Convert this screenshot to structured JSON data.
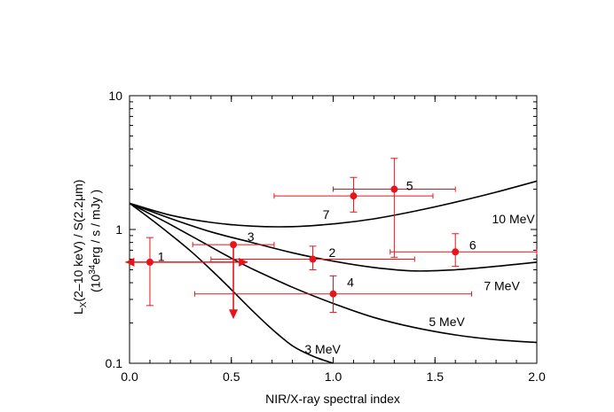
{
  "chart_data": {
    "type": "scatter",
    "xlabel": "NIR/X-ray spectral index",
    "ylabel_line1_pre": "L",
    "ylabel_line1_sub": "X",
    "ylabel_line1_post": "(2–10 keV) / S(2.2μm)",
    "ylabel_line2_pre": "(10",
    "ylabel_line2_sup": "34",
    "ylabel_line2_post": "erg / s / mJy )",
    "xlim": [
      0.0,
      2.0
    ],
    "ylim": [
      0.1,
      10
    ],
    "yscale": "log",
    "x_ticks": [
      {
        "v": 0.0,
        "label": "0.0"
      },
      {
        "v": 0.5,
        "label": "0.5"
      },
      {
        "v": 1.0,
        "label": "1.0"
      },
      {
        "v": 1.5,
        "label": "1.5"
      },
      {
        "v": 2.0,
        "label": "2.0"
      }
    ],
    "y_ticks": [
      {
        "v": 0.1,
        "label": "0.1"
      },
      {
        "v": 1,
        "label": "1"
      },
      {
        "v": 10,
        "label": "10"
      }
    ],
    "points_color": "#e8141b",
    "points": [
      {
        "id": "1",
        "x": 0.1,
        "y": 0.57,
        "y_lo": 0.27,
        "y_hi": 0.87,
        "x_lo": -0.02,
        "x_hi": 0.58,
        "x_limits_arrows": true,
        "label_dx": 0.06,
        "label_dy": 1.1
      },
      {
        "id": "2",
        "x": 0.9,
        "y": 0.6,
        "y_lo": 0.5,
        "y_hi": 0.75,
        "x_lo": 0.4,
        "x_hi": 1.4,
        "label_dx": 0.1,
        "label_dy": 1.12
      },
      {
        "id": "3",
        "x": 0.51,
        "y": 0.77,
        "y_upper_limit_to": 0.22,
        "x_lo": 0.31,
        "x_hi": 0.71,
        "label_dx": 0.09,
        "label_dy": 1.15
      },
      {
        "id": "4",
        "x": 1.0,
        "y": 0.33,
        "y_lo": 0.24,
        "y_hi": 0.45,
        "x_lo": 0.32,
        "x_hi": 1.68,
        "label_dx": 0.09,
        "label_dy": 1.22
      },
      {
        "id": "5",
        "x": 1.3,
        "y": 2.0,
        "y_lo": 0.62,
        "y_hi": 3.4,
        "x_lo": 1.0,
        "x_hi": 1.6,
        "label_dx": 0.08,
        "label_dy": 1.06
      },
      {
        "id": "6",
        "x": 1.6,
        "y": 0.68,
        "y_lo": 0.53,
        "y_hi": 0.93,
        "x_lo": 1.28,
        "x_hi": 2.0,
        "label_dx": 0.09,
        "label_dy": 1.13
      },
      {
        "id": "7",
        "x": 1.1,
        "y": 1.78,
        "y_lo": 1.35,
        "y_hi": 2.45,
        "x_lo": 0.71,
        "x_hi": 1.49,
        "label_dx": -0.13,
        "label_dy": 0.73
      }
    ],
    "series": [
      {
        "name": "3 MeV",
        "label_x": 0.86,
        "label_y": 0.128,
        "x": [
          0,
          0.1,
          0.2,
          0.3,
          0.4,
          0.5,
          0.6,
          0.7,
          0.8,
          0.9,
          1.0
        ],
        "y": [
          1.57,
          1.21,
          0.92,
          0.69,
          0.5,
          0.355,
          0.25,
          0.18,
          0.135,
          0.113,
          0.1
        ]
      },
      {
        "name": "5 MeV",
        "label_x": 1.47,
        "label_y": 0.205,
        "x": [
          0,
          0.1,
          0.2,
          0.3,
          0.4,
          0.5,
          0.6,
          0.8,
          1.0,
          1.2,
          1.4,
          1.6,
          1.8,
          2.0
        ],
        "y": [
          1.57,
          1.31,
          1.09,
          0.9,
          0.74,
          0.61,
          0.51,
          0.37,
          0.28,
          0.22,
          0.185,
          0.163,
          0.15,
          0.143
        ]
      },
      {
        "name": "7 MeV",
        "label_x": 1.74,
        "label_y": 0.38,
        "x": [
          0,
          0.2,
          0.4,
          0.6,
          0.8,
          1.0,
          1.2,
          1.4,
          1.6,
          1.8,
          2.0
        ],
        "y": [
          1.57,
          1.21,
          0.96,
          0.8,
          0.67,
          0.58,
          0.52,
          0.49,
          0.5,
          0.53,
          0.57
        ]
      },
      {
        "name": "10 MeV",
        "label_x": 1.78,
        "label_y": 1.2,
        "x": [
          0,
          0.2,
          0.4,
          0.6,
          0.8,
          1.0,
          1.2,
          1.4,
          1.6,
          1.8,
          2.0
        ],
        "y": [
          1.57,
          1.28,
          1.13,
          1.06,
          1.05,
          1.1,
          1.2,
          1.37,
          1.6,
          1.9,
          2.3
        ]
      }
    ]
  }
}
